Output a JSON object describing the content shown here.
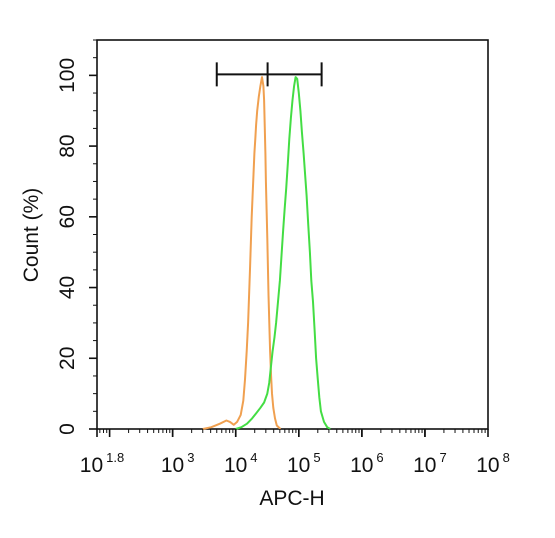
{
  "chart_data": {
    "type": "line",
    "xlabel": "APC-H",
    "ylabel": "Count  (%)",
    "x_scale": "log",
    "xlim": [
      63.1,
      100000000
    ],
    "ylim": [
      0,
      110
    ],
    "x_ticks": [
      {
        "base": "10",
        "exp": "1.8",
        "value": 63.1
      },
      {
        "base": "10",
        "exp": "3",
        "value": 1000
      },
      {
        "base": "10",
        "exp": "4",
        "value": 10000
      },
      {
        "base": "10",
        "exp": "5",
        "value": 100000
      },
      {
        "base": "10",
        "exp": "6",
        "value": 1000000
      },
      {
        "base": "10",
        "exp": "7",
        "value": 10000000
      },
      {
        "base": "10",
        "exp": "8",
        "value": 100000000
      }
    ],
    "y_ticks": [
      {
        "label": "0",
        "value": 0
      },
      {
        "label": "20",
        "value": 20
      },
      {
        "label": "40",
        "value": 40
      },
      {
        "label": "60",
        "value": 60
      },
      {
        "label": "80",
        "value": 80
      },
      {
        "label": "100",
        "value": 100
      }
    ],
    "gate": {
      "left": 5000,
      "center": 32000,
      "right": 230000,
      "y": 100
    },
    "grid": false,
    "series": [
      {
        "color": "#f0a050",
        "points": [
          [
            3000,
            0.0
          ],
          [
            4100,
            0.5
          ],
          [
            5600,
            1.5
          ],
          [
            7100,
            2.4
          ],
          [
            8100,
            2.0
          ],
          [
            9300,
            1.2
          ],
          [
            10500,
            2.0
          ],
          [
            12000,
            4.0
          ],
          [
            13200,
            8.0
          ],
          [
            14000,
            14.0
          ],
          [
            14900,
            22.0
          ],
          [
            15700,
            30.0
          ],
          [
            16300,
            38.0
          ],
          [
            16900,
            46.0
          ],
          [
            17400,
            53.0
          ],
          [
            17900,
            60.0
          ],
          [
            18500,
            66.0
          ],
          [
            19100,
            72.0
          ],
          [
            19800,
            78.0
          ],
          [
            20400,
            82.0
          ],
          [
            21000,
            86.0
          ],
          [
            21900,
            90.0
          ],
          [
            23200,
            94.0
          ],
          [
            24600,
            97.0
          ],
          [
            26100,
            99.5
          ],
          [
            27500,
            97.0
          ],
          [
            28200,
            93.0
          ],
          [
            28900,
            85.0
          ],
          [
            29500,
            78.0
          ],
          [
            30100,
            70.0
          ],
          [
            30900,
            62.0
          ],
          [
            31600,
            54.0
          ],
          [
            32400,
            46.0
          ],
          [
            33100,
            38.0
          ],
          [
            34100,
            30.0
          ],
          [
            35100,
            22.0
          ],
          [
            36300,
            15.0
          ],
          [
            37600,
            10.0
          ],
          [
            39400,
            6.0
          ],
          [
            41900,
            3.0
          ],
          [
            44700,
            1.0
          ],
          [
            51300,
            0.0
          ]
        ]
      },
      {
        "color": "#44dd44",
        "points": [
          [
            10000,
            0.0
          ],
          [
            12300,
            0.5
          ],
          [
            15100,
            1.5
          ],
          [
            18200,
            3.0
          ],
          [
            21200,
            4.5
          ],
          [
            24600,
            6.0
          ],
          [
            28200,
            7.5
          ],
          [
            31600,
            10.0
          ],
          [
            33900,
            13.0
          ],
          [
            35900,
            17.0
          ],
          [
            38400,
            22.0
          ],
          [
            41100,
            26.0
          ],
          [
            43700,
            30.0
          ],
          [
            46800,
            36.0
          ],
          [
            50100,
            42.0
          ],
          [
            53100,
            49.0
          ],
          [
            56300,
            56.0
          ],
          [
            59600,
            62.0
          ],
          [
            63100,
            68.0
          ],
          [
            66800,
            75.0
          ],
          [
            70800,
            82.0
          ],
          [
            75000,
            88.0
          ],
          [
            79400,
            93.0
          ],
          [
            84100,
            97.0
          ],
          [
            89100,
            99.5
          ],
          [
            94400,
            99.0
          ],
          [
            100000,
            95.0
          ],
          [
            106000,
            90.0
          ],
          [
            112000,
            84.0
          ],
          [
            119000,
            78.0
          ],
          [
            126000,
            72.0
          ],
          [
            133000,
            66.0
          ],
          [
            141000,
            58.0
          ],
          [
            150000,
            50.0
          ],
          [
            158000,
            42.0
          ],
          [
            168000,
            36.0
          ],
          [
            178000,
            28.0
          ],
          [
            188000,
            20.0
          ],
          [
            200000,
            14.0
          ],
          [
            211000,
            9.0
          ],
          [
            224000,
            5.0
          ],
          [
            251000,
            2.0
          ],
          [
            282000,
            0.5
          ],
          [
            316000,
            0.0
          ]
        ]
      }
    ]
  }
}
